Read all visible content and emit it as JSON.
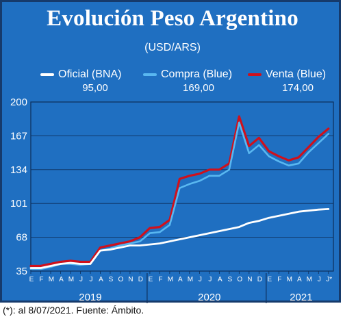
{
  "title": "Evolución Peso Argentino",
  "subtitle": "(USD/ARS)",
  "legend": [
    {
      "label": "Oficial (BNA)",
      "value": "95,00",
      "color": "#ffffff"
    },
    {
      "label": "Compra (Blue)",
      "value": "169,00",
      "color": "#59b7f0"
    },
    {
      "label": "Venta (Blue)",
      "value": "174,00",
      "color": "#d0101b"
    }
  ],
  "footnote": "(*): al 8/07/2021. Fuente: Ámbito.",
  "chart_data": {
    "type": "line",
    "title": "Evolución Peso Argentino",
    "subtitle": "(USD/ARS)",
    "ylim": [
      35,
      200
    ],
    "yticks": [
      35,
      68,
      101,
      134,
      167,
      200
    ],
    "grid": true,
    "legend_position": "top",
    "x_axis": {
      "month_ticks": [
        "E",
        "F",
        "M",
        "A",
        "M",
        "J",
        "J",
        "A",
        "S",
        "O",
        "N",
        "D",
        "E",
        "F",
        "M",
        "A",
        "M",
        "J",
        "J",
        "A",
        "S",
        "O",
        "N",
        "D",
        "E",
        "F",
        "M",
        "A",
        "M",
        "J",
        "J*"
      ],
      "year_labels": [
        "2019",
        "2020",
        "2021"
      ]
    },
    "series": [
      {
        "name": "Oficial (BNA)",
        "color": "#ffffff",
        "points": [
          [
            0,
            38
          ],
          [
            1,
            38
          ],
          [
            2,
            40
          ],
          [
            3,
            42
          ],
          [
            4,
            43
          ],
          [
            5,
            42
          ],
          [
            6,
            42
          ],
          [
            7,
            55
          ],
          [
            8,
            56
          ],
          [
            9,
            58
          ],
          [
            10,
            60
          ],
          [
            11,
            60
          ],
          [
            12,
            61
          ],
          [
            13,
            62
          ],
          [
            14,
            64
          ],
          [
            15,
            66
          ],
          [
            16,
            68
          ],
          [
            17,
            70
          ],
          [
            18,
            72
          ],
          [
            19,
            74
          ],
          [
            20,
            76
          ],
          [
            21,
            78
          ],
          [
            22,
            82
          ],
          [
            23,
            84
          ],
          [
            24,
            87
          ],
          [
            25,
            89
          ],
          [
            26,
            91
          ],
          [
            27,
            93
          ],
          [
            28,
            94
          ],
          [
            29,
            95
          ],
          [
            30,
            95.5
          ]
        ]
      },
      {
        "name": "Compra (Blue)",
        "color": "#59b7f0",
        "points": [
          [
            0,
            37
          ],
          [
            1,
            37
          ],
          [
            2,
            39
          ],
          [
            3,
            42
          ],
          [
            4,
            42
          ],
          [
            5,
            41
          ],
          [
            6,
            42
          ],
          [
            7,
            55
          ],
          [
            8,
            57
          ],
          [
            9,
            60
          ],
          [
            10,
            62
          ],
          [
            11,
            64
          ],
          [
            12,
            72
          ],
          [
            13,
            73
          ],
          [
            14,
            80
          ],
          [
            15,
            116
          ],
          [
            16,
            120
          ],
          [
            17,
            123
          ],
          [
            18,
            128
          ],
          [
            19,
            128
          ],
          [
            20,
            134
          ],
          [
            21,
            180
          ],
          [
            22,
            150
          ],
          [
            23,
            158
          ],
          [
            24,
            147
          ],
          [
            25,
            142
          ],
          [
            26,
            138
          ],
          [
            27,
            140
          ],
          [
            28,
            151
          ],
          [
            29,
            160
          ],
          [
            30,
            169
          ]
        ]
      },
      {
        "name": "Venta (Blue)",
        "color": "#d0101b",
        "points": [
          [
            0,
            40
          ],
          [
            1,
            40
          ],
          [
            2,
            42
          ],
          [
            3,
            44
          ],
          [
            4,
            45
          ],
          [
            5,
            44
          ],
          [
            6,
            44
          ],
          [
            7,
            58
          ],
          [
            8,
            60
          ],
          [
            9,
            62
          ],
          [
            10,
            64
          ],
          [
            11,
            68
          ],
          [
            12,
            77
          ],
          [
            13,
            78
          ],
          [
            14,
            85
          ],
          [
            15,
            125
          ],
          [
            16,
            128
          ],
          [
            17,
            130
          ],
          [
            18,
            134
          ],
          [
            19,
            134
          ],
          [
            20,
            140
          ],
          [
            21,
            186
          ],
          [
            22,
            157
          ],
          [
            23,
            165
          ],
          [
            24,
            152
          ],
          [
            25,
            147
          ],
          [
            26,
            143
          ],
          [
            27,
            146
          ],
          [
            28,
            156
          ],
          [
            29,
            166
          ],
          [
            30,
            174
          ]
        ]
      }
    ]
  }
}
